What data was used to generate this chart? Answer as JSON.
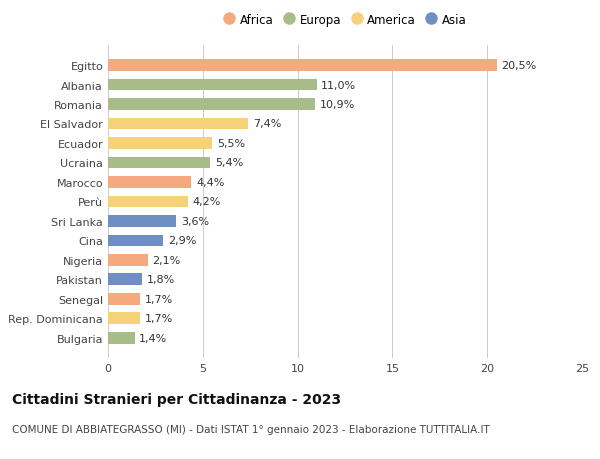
{
  "countries": [
    "Egitto",
    "Albania",
    "Romania",
    "El Salvador",
    "Ecuador",
    "Ucraina",
    "Marocco",
    "Perù",
    "Sri Lanka",
    "Cina",
    "Nigeria",
    "Pakistan",
    "Senegal",
    "Rep. Dominicana",
    "Bulgaria"
  ],
  "values": [
    20.5,
    11.0,
    10.9,
    7.4,
    5.5,
    5.4,
    4.4,
    4.2,
    3.6,
    2.9,
    2.1,
    1.8,
    1.7,
    1.7,
    1.4
  ],
  "labels": [
    "20,5%",
    "11,0%",
    "10,9%",
    "7,4%",
    "5,5%",
    "5,4%",
    "4,4%",
    "4,2%",
    "3,6%",
    "2,9%",
    "2,1%",
    "1,8%",
    "1,7%",
    "1,7%",
    "1,4%"
  ],
  "continents": [
    "Africa",
    "Europa",
    "Europa",
    "America",
    "America",
    "Europa",
    "Africa",
    "America",
    "Asia",
    "Asia",
    "Africa",
    "Asia",
    "Africa",
    "America",
    "Europa"
  ],
  "continent_colors": {
    "Africa": "#F4A97F",
    "Europa": "#A8BC8A",
    "America": "#F5D27A",
    "Asia": "#6E8EC4"
  },
  "legend_order": [
    "Africa",
    "Europa",
    "America",
    "Asia"
  ],
  "title": "Cittadini Stranieri per Cittadinanza - 2023",
  "subtitle": "COMUNE DI ABBIATEGRASSO (MI) - Dati ISTAT 1° gennaio 2023 - Elaborazione TUTTITALIA.IT",
  "xlim": [
    0,
    25
  ],
  "xticks": [
    0,
    5,
    10,
    15,
    20,
    25
  ],
  "background_color": "#ffffff",
  "bar_height": 0.6,
  "title_fontsize": 10,
  "subtitle_fontsize": 7.5,
  "tick_fontsize": 8,
  "label_fontsize": 8,
  "legend_fontsize": 8.5
}
